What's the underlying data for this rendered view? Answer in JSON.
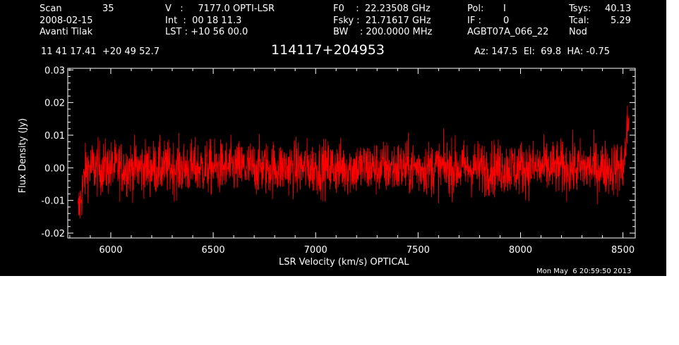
{
  "header": {
    "scan_label": "Scan",
    "scan_value": "35",
    "date": "2008-02-15",
    "observer": "Avanti Tilak",
    "v_line": "V   :     7177.0 OPTI-LSR",
    "int_line": "Int  :  00 18 11.3",
    "lst_line": "LST : +10 56 00.0",
    "f0_line": "F0    :  22.23508 GHz",
    "fsky_line": "Fsky :  21.71617 GHz",
    "bw_line": "BW    : 200.0000 MHz",
    "pol_label": "Pol:",
    "pol_value": "I",
    "if_label": "IF :",
    "if_value": "0",
    "project": "AGBT07A_066_22",
    "tsys_label": "Tsys:",
    "tsys_value": "40.13",
    "tcal_label": "Tcal:",
    "tcal_value": "5.29",
    "mode": "Nod",
    "coords": "11 41 17.41  +20 49 52.7",
    "source": "114117+204953",
    "azel": "Az: 147.5  El:  69.8  HA: -0.75",
    "timestamp": "Mon May  6 20:59:50 2013"
  },
  "colors": {
    "background": "#000000",
    "axes": "#ffffff",
    "series": "#ff0000"
  },
  "chart_data": {
    "type": "line",
    "xlabel": "LSR Velocity (km/s) OPTICAL",
    "ylabel": "Flux Density (Jy)",
    "xlim": [
      5790,
      8560
    ],
    "ylim": [
      -0.0215,
      0.0305
    ],
    "x_ticks": [
      6000,
      6500,
      7000,
      7500,
      8000,
      8500
    ],
    "x_tick_labels": [
      "6000",
      "6500",
      "7000",
      "7500",
      "8000",
      "8500"
    ],
    "y_ticks": [
      -0.02,
      -0.01,
      0.0,
      0.01,
      0.02,
      0.03
    ],
    "y_tick_labels": [
      "-0.02",
      "-0.01",
      "0.00",
      "0.01",
      "0.02",
      "0.03"
    ],
    "series": [
      {
        "x_range": [
          5840,
          8530
        ],
        "n_points": 2200,
        "noise_rms": 0.0042,
        "mean": 0.0,
        "edge_values": {
          "start": -0.017,
          "end": 0.021
        }
      }
    ],
    "grid": false
  }
}
